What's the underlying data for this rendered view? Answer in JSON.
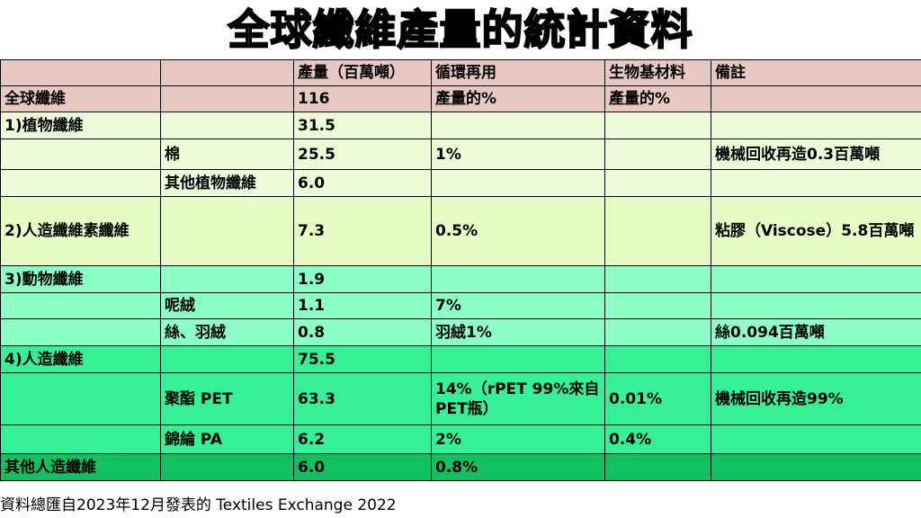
{
  "title": "全球纖維產量的統計資料",
  "colors": {
    "header_row": "#e8c8c2",
    "plant_rows": "#eefbd8",
    "cellulose_row": "#e6fcc4",
    "animal_rows": "#8cffc8",
    "synthetic_rows": "#35f095",
    "other_row": "#12c060"
  },
  "table": {
    "headers": [
      "",
      "",
      "產量（百萬噸）",
      "循環再用",
      "生物基材料",
      "備註"
    ],
    "rows": [
      [
        "全球纖維",
        "",
        "116",
        "產量的%",
        "產量的%",
        ""
      ],
      [
        "1)植物纖維",
        "",
        "31.5",
        "",
        "",
        ""
      ],
      [
        "",
        "棉",
        "25.5",
        "1%",
        "",
        "機械回收再造0.3百萬噸"
      ],
      [
        "",
        "其他植物纖維",
        "6.0",
        "",
        "",
        ""
      ],
      [
        "2)人造纖維素纖維",
        "",
        "7.3",
        "0.5%",
        "",
        "粘膠（Viscose）5.8百萬噸"
      ],
      [
        "3)動物纖維",
        "",
        "1.9",
        "",
        "",
        ""
      ],
      [
        "",
        "呢絨",
        "1.1",
        "7%",
        "",
        ""
      ],
      [
        "",
        "絲、羽絨",
        "0.8",
        "羽絨1%",
        "",
        "絲0.094百萬噸"
      ],
      [
        "4)人造纖維",
        "",
        "75.5",
        "",
        "",
        ""
      ],
      [
        "",
        "聚酯 PET",
        "63.3",
        "14%（rPET 99%來自PET瓶）",
        "0.01%",
        "機械回收再造99%"
      ],
      [
        "",
        "錦綸 PA",
        "6.2",
        "2%",
        "0.4%",
        ""
      ],
      [
        "其他人造纖維",
        "",
        "6.0",
        "0.8%",
        "",
        ""
      ]
    ]
  },
  "footer": "資料總匯自2023年12月發表的 Textiles Exchange 2022"
}
